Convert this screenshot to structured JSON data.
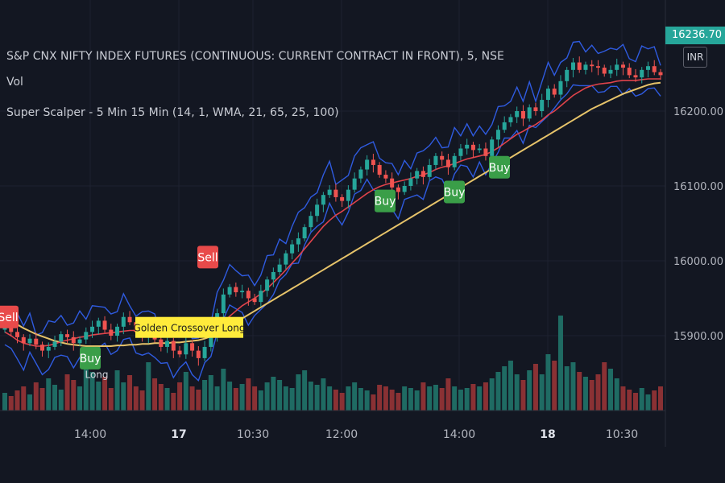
{
  "legend": {
    "symbol": "S&P CNX NIFTY INDEX FUTURES (CONTINUOUS: CURRENT CONTRACT IN FRONT), 5, NSE",
    "vol": "Vol",
    "indicator": "Super Scalper - 5 Min 15 Min (14, 1, WMA, 21, 65, 25, 100)"
  },
  "currency": "INR",
  "last_price": "16236.70",
  "colors": {
    "background": "#131722",
    "up": "#26a69a",
    "down": "#ef5350",
    "band": "#2f5be0",
    "fast_ma": "#e0434b",
    "slow_ma": "#e6c36a",
    "buy": "#3a9e48",
    "sell": "#e84a4a",
    "crossover": "#ffeb3b"
  },
  "chart_data": {
    "type": "candlestick",
    "price_axis": {
      "ticks": [
        16200,
        16100,
        16000,
        15900
      ],
      "labels": [
        "16200.00",
        "16100.00",
        "16000.00",
        "15900.00"
      ]
    },
    "time_axis": {
      "labels": [
        "14:00",
        "17",
        "10:30",
        "12:00",
        "14:00",
        "18",
        "10:30"
      ]
    },
    "signals": [
      {
        "label": "Sell",
        "price": 15925
      },
      {
        "label": "Sell",
        "price": 16005
      },
      {
        "label": "Buy",
        "price": 16080
      },
      {
        "label": "Buy",
        "price": 16092
      },
      {
        "label": "Buy",
        "price": 16125
      },
      {
        "label": "Buy",
        "price": 15870
      }
    ],
    "annotations": [
      {
        "label": "Golden Crossover Long",
        "price": 15910
      },
      {
        "label": "Long",
        "price": 15865
      }
    ],
    "series": [
      {
        "name": "Price",
        "values": [
          15912,
          15905,
          15898,
          15890,
          15896,
          15888,
          15880,
          15885,
          15892,
          15902,
          15898,
          15890,
          15895,
          15905,
          15912,
          15920,
          15908,
          15900,
          15912,
          15925,
          15918,
          15905,
          15900,
          15910,
          15895,
          15885,
          15893,
          15880,
          15875,
          15890,
          15880,
          15870,
          15885,
          15900,
          15930,
          15955,
          15965,
          15958,
          15960,
          15950,
          15945,
          15960,
          15975,
          15985,
          15995,
          16010,
          16022,
          16030,
          16045,
          16060,
          16075,
          16088,
          16095,
          16085,
          16080,
          16095,
          16110,
          16122,
          16135,
          16128,
          16115,
          16110,
          16098,
          16092,
          16100,
          16110,
          16120,
          16112,
          16128,
          16140,
          16135,
          16125,
          16140,
          16150,
          16155,
          16148,
          16150,
          16140,
          16162,
          16175,
          16185,
          16192,
          16200,
          16190,
          16205,
          16200,
          16215,
          16230,
          16222,
          16240,
          16255,
          16265,
          16255,
          16262,
          16260,
          16258,
          16250,
          16255,
          16262,
          16258,
          16248,
          16245,
          16255,
          16260,
          16252,
          16248
        ]
      },
      {
        "name": "Fast MA",
        "values": [
          15905,
          15900,
          15894,
          15890,
          15888,
          15886,
          15886,
          15887,
          15889,
          15892,
          15894,
          15896,
          15898,
          15899,
          15901,
          15902,
          15903,
          15904,
          15905,
          15906,
          15907,
          15907,
          15906,
          15906,
          15905,
          15904,
          15903,
          15901,
          15900,
          15900,
          15899,
          15898,
          15899,
          15903,
          15910,
          15918,
          15926,
          15933,
          15940,
          15945,
          15950,
          15956,
          15963,
          15971,
          15979,
          15988,
          15997,
          16006,
          16016,
          16026,
          16036,
          16046,
          16054,
          16061,
          16066,
          16072,
          16078,
          16084,
          16090,
          16095,
          16099,
          16102,
          16104,
          16106,
          16108,
          16110,
          16113,
          16115,
          16118,
          16122,
          16125,
          16127,
          16130,
          16133,
          16136,
          16138,
          16140,
          16142,
          16146,
          16151,
          16157,
          16163,
          16169,
          16173,
          16178,
          16182,
          16188,
          16195,
          16200,
          16207,
          16214,
          16221,
          16226,
          16231,
          16234,
          16236,
          16237,
          16238,
          16240,
          16241,
          16241,
          16241,
          16242,
          16243,
          16243,
          16243
        ]
      },
      {
        "name": "Slow MA",
        "values": [
          15925,
          15920,
          15915,
          15910,
          15906,
          15902,
          15899,
          15896,
          15893,
          15891,
          15889,
          15888,
          15887,
          15886,
          15886,
          15886,
          15886,
          15886,
          15887,
          15887,
          15888,
          15888,
          15889,
          15889,
          15890,
          15890,
          15890,
          15891,
          15891,
          15892,
          15893,
          15894,
          15896,
          15899,
          15903,
          15908,
          15913,
          15918,
          15923,
          15928,
          15933,
          15938,
          15943,
          15948,
          15953,
          15958,
          15963,
          15968,
          15973,
          15978,
          15983,
          15988,
          15993,
          15998,
          16003,
          16008,
          16013,
          16018,
          16023,
          16028,
          16033,
          16038,
          16043,
          16048,
          16053,
          16058,
          16063,
          16068,
          16073,
          16078,
          16083,
          16088,
          16093,
          16098,
          16103,
          16108,
          16113,
          16118,
          16123,
          16128,
          16133,
          16138,
          16143,
          16148,
          16153,
          16158,
          16163,
          16168,
          16173,
          16178,
          16183,
          16188,
          16193,
          16198,
          16203,
          16207,
          16211,
          16215,
          16219,
          16223,
          16226,
          16229,
          16232,
          16235,
          16237,
          16238
        ]
      }
    ],
    "volume": {
      "values": [
        22,
        18,
        25,
        30,
        20,
        35,
        28,
        40,
        32,
        26,
        45,
        38,
        30,
        55,
        48,
        36,
        42,
        28,
        50,
        35,
        44,
        30,
        25,
        60,
        40,
        33,
        28,
        22,
        35,
        48,
        30,
        26,
        38,
        44,
        30,
        52,
        36,
        28,
        33,
        40,
        30,
        25,
        35,
        42,
        38,
        30,
        28,
        45,
        50,
        36,
        32,
        40,
        30,
        26,
        22,
        30,
        35,
        28,
        25,
        20,
        32,
        30,
        26,
        22,
        30,
        28,
        25,
        35,
        30,
        32,
        28,
        40,
        30,
        26,
        28,
        33,
        30,
        35,
        40,
        48,
        55,
        62,
        45,
        38,
        50,
        58,
        45,
        70,
        62,
        118,
        55,
        60,
        48,
        42,
        38,
        45,
        60,
        52,
        40,
        30,
        26,
        22,
        28,
        20,
        25,
        30
      ]
    }
  }
}
